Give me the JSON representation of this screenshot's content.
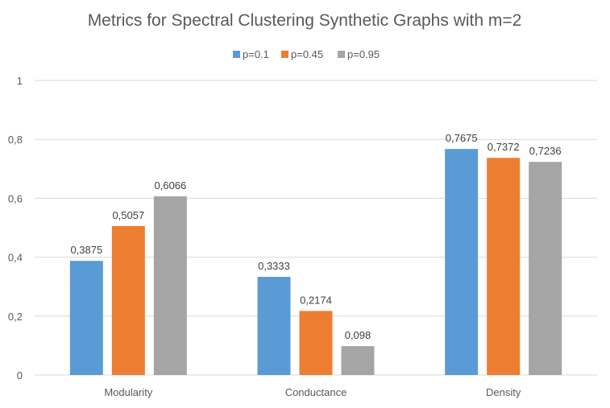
{
  "chart_data": {
    "type": "bar",
    "title": "Metrics for Spectral Clustering Synthetic Graphs with m=2",
    "xlabel": "",
    "ylabel": "",
    "categories": [
      "Modularity",
      "Conductance",
      "Density"
    ],
    "series": [
      {
        "name": "p=0.1",
        "values": [
          0.3875,
          0.3333,
          0.7675
        ],
        "labels": [
          "0,3875",
          "0,3333",
          "0,7675"
        ],
        "color": "#5b9bd5"
      },
      {
        "name": "p=0.45",
        "values": [
          0.5057,
          0.2174,
          0.7372
        ],
        "labels": [
          "0,5057",
          "0,2174",
          "0,7372"
        ],
        "color": "#ed7d31"
      },
      {
        "name": "p=0.95",
        "values": [
          0.6066,
          0.098,
          0.7236
        ],
        "labels": [
          "0,6066",
          "0,098",
          "0,7236"
        ],
        "color": "#a5a5a5"
      }
    ],
    "ylim": [
      0,
      1
    ],
    "yticks": [
      0,
      0.2,
      0.4,
      0.6,
      0.8,
      1
    ],
    "ytick_labels": [
      "0",
      "0,2",
      "0,4",
      "0,6",
      "0,8",
      "1"
    ],
    "grid": true,
    "legend_position": "top"
  }
}
